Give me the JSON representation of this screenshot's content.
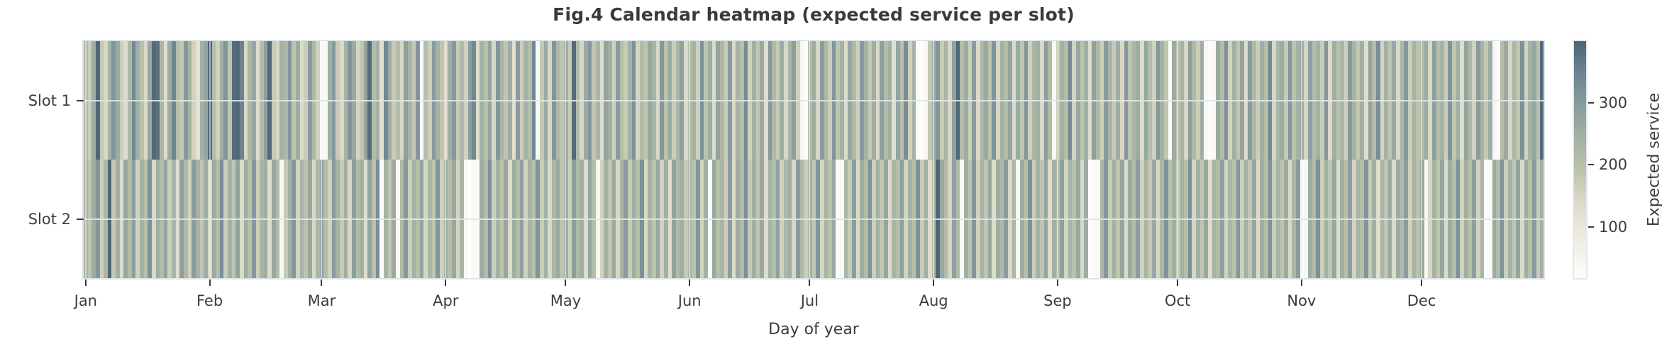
{
  "chart_data": {
    "type": "heatmap",
    "title": "Fig.4 Calendar heatmap (expected service per slot)",
    "xlabel": "Day of year",
    "colorbar_label": "Expected service",
    "colorbar_ticks": [
      100,
      200,
      300
    ],
    "vmin": 17,
    "vmax": 400,
    "days": 365,
    "x_tick_labels": [
      "Jan",
      "Feb",
      "Mar",
      "Apr",
      "May",
      "Jun",
      "Jul",
      "Aug",
      "Sep",
      "Oct",
      "Nov",
      "Dec"
    ],
    "month_start_days": [
      1,
      32,
      60,
      91,
      121,
      152,
      182,
      213,
      244,
      274,
      305,
      335
    ],
    "row_labels": [
      "Slot 1",
      "Slot 2"
    ],
    "grid": true,
    "colormap_anchors": [
      [
        17,
        "#fdfdfc"
      ],
      [
        100,
        "#eae6da"
      ],
      [
        150,
        "#d7d6c3"
      ],
      [
        200,
        "#b6bfa8"
      ],
      [
        250,
        "#a0afa3"
      ],
      [
        300,
        "#87999e"
      ],
      [
        350,
        "#6c8490"
      ],
      [
        400,
        "#4d6674"
      ]
    ],
    "series": [
      {
        "name": "Slot 1",
        "values": [
          212,
          168,
          254,
          396,
          181,
          146,
          233,
          310,
          258,
          170,
          128,
          221,
          338,
          249,
          196,
          141,
          266,
          391,
          382,
          226,
          129,
          257,
          345,
          205,
          178,
          299,
          238,
          157,
          117,
          244,
          272,
          398,
          205,
          161,
          247,
          310,
          186,
          389,
          394,
          352,
          146,
          228,
          268,
          132,
          209,
          287,
          391,
          175,
          150,
          243,
          222,
          306,
          188,
          256,
          136,
          171,
          295,
          218,
          162,
          28,
          35,
          248,
          301,
          172,
          142,
          235,
          309,
          263,
          151,
          184,
          276,
          389,
          208,
          244,
          119,
          339,
          256,
          172,
          205,
          148,
          287,
          232,
          178,
          310,
          24,
          204,
          164,
          296,
          239,
          187,
          137,
          252,
          304,
          175,
          215,
          160,
          288,
          338,
          126,
          243,
          198,
          272,
          146,
          308,
          227,
          184,
          252,
          121,
          297,
          168,
          236,
          206,
          341,
          33,
          179,
          260,
          145,
          310,
          222,
          188,
          254,
          172,
          391,
          214,
          146,
          262,
          308,
          183,
          228,
          131,
          276,
          249,
          160,
          298,
          205,
          174,
          240,
          320,
          152,
          211,
          186,
          266,
          230,
          144,
          305,
          194,
          258,
          170,
          224,
          284,
          138,
          208,
          242,
          162,
          316,
          190,
          252,
          136,
          278,
          221,
          173,
          296,
          146,
          235,
          201,
          330,
          158,
          246,
          182,
          264,
          128,
          302,
          217,
          176,
          255,
          146,
          231,
          288,
          164,
          38,
          22,
          207,
          256,
          148,
          293,
          226,
          170,
          310,
          188,
          242,
          133,
          269,
          215,
          163,
          301,
          236,
          179,
          252,
          141,
          286,
          208,
          247,
          122,
          274,
          196,
          328,
          161,
          239,
          29,
          17,
          44,
          182,
          256,
          308,
          174,
          231,
          146,
          282,
          398,
          205,
          252,
          168,
          296,
          138,
          224,
          262,
          190,
          315,
          152,
          243,
          208,
          277,
          136,
          260,
          186,
          306,
          164,
          229,
          251,
          143,
          290,
          213,
          35,
          178,
          244,
          206,
          332,
          156,
          268,
          192,
          248,
          130,
          285,
          219,
          163,
          297,
          234,
          175,
          252,
          146,
          302,
          188,
          226,
          256,
          137,
          271,
          203,
          161,
          308,
          242,
          184,
          26,
          258,
          197,
          233,
          146,
          288,
          221,
          170,
          252,
          38,
          21,
          30,
          262,
          205,
          316,
          158,
          243,
          186,
          274,
          132,
          296,
          218,
          168,
          250,
          204,
          338,
          146,
          228,
          260,
          176,
          304,
          192,
          241,
          263,
          150,
          285,
          210,
          240,
          172,
          308,
          136,
          252,
          196,
          226,
          162,
          298,
          234,
          180,
          246,
          128,
          274,
          206,
          330,
          154,
          242,
          188,
          266,
          146,
          222,
          302,
          170,
          238,
          194,
          216,
          256,
          146,
          284,
          202,
          238,
          168,
          312,
          184,
          250,
          132,
          272,
          220,
          160,
          296,
          236,
          178,
          254,
          40,
          25,
          206,
          264,
          148,
          230,
          186,
          320,
          158,
          242,
          270,
          196,
          388
        ]
      },
      {
        "name": "Slot 2",
        "values": [
          231,
          186,
          254,
          308,
          162,
          226,
          398,
          178,
          246,
          134,
          270,
          212,
          290,
          158,
          238,
          196,
          316,
          144,
          252,
          206,
          274,
          168,
          232,
          124,
          286,
          218,
          160,
          296,
          240,
          182,
          252,
          146,
          262,
          208,
          324,
          170,
          244,
          186,
          278,
          136,
          256,
          198,
          302,
          164,
          230,
          252,
          128,
          268,
          214,
          36,
          176,
          246,
          308,
          158,
          236,
          190,
          264,
          142,
          224,
          282,
          206,
          160,
          298,
          234,
          176,
          250,
          144,
          288,
          210,
          248,
          130,
          272,
          196,
          326,
          22,
          238,
          184,
          262,
          36,
          218,
          302,
          168,
          244,
          200,
          276,
          148,
          228,
          186,
          308,
          162,
          246,
          204,
          268,
          152,
          232,
          40,
          18,
          32,
          26,
          260,
          212,
          318,
          166,
          242,
          188,
          270,
          134,
          252,
          208,
          284,
          158,
          236,
          196,
          312,
          170,
          248,
          142,
          226,
          264,
          190,
          254,
          164,
          288,
          218,
          248,
          132,
          270,
          206,
          38,
          158,
          240,
          186,
          264,
          148,
          228,
          296,
          172,
          252,
          200,
          322,
          146,
          234,
          190,
          268,
          156,
          246,
          124,
          282,
          214,
          250,
          178,
          232,
          190,
          308,
          154,
          244,
          26,
          268,
          202,
          230,
          164,
          290,
          138,
          256,
          212,
          324,
          176,
          248,
          186,
          266,
          130,
          238,
          204,
          282,
          158,
          226,
          252,
          146,
          296,
          218,
          170,
          240,
          186,
          310,
          152,
          234,
          196,
          264,
          20,
          36,
          228,
          172,
          292,
          140,
          254,
          210,
          320,
          166,
          246,
          184,
          270,
          136,
          232,
          202,
          286,
          156,
          244,
          198,
          316,
          174,
          250,
          128,
          226,
          398,
          262,
          208,
          150,
          284,
          218,
          32,
          246,
          190,
          306,
          160,
          238,
          184,
          268,
          134,
          252,
          214,
          294,
          146,
          230,
          40,
          258,
          200,
          318,
          168,
          242,
          186,
          272,
          130,
          248,
          210,
          286,
          154,
          234,
          196,
          264,
          142,
          252,
          22,
          28,
          34,
          224,
          308,
          172,
          246,
          188,
          270,
          136,
          256,
          202,
          290,
          158,
          232,
          180,
          262,
          146,
          226,
          314,
          194,
          250,
          178,
          240,
          204,
          324,
          152,
          248,
          186,
          266,
          130,
          238,
          212,
          284,
          158,
          230,
          196,
          306,
          164,
          244,
          182,
          270,
          138,
          252,
          206,
          318,
          170,
          234,
          190,
          260,
          144,
          228,
          296,
          24,
          38,
          254,
          208,
          320,
          166,
          242,
          184,
          268,
          132,
          250,
          198,
          288,
          156,
          236,
          202,
          312,
          174,
          246,
          128,
          230,
          186,
          264,
          140,
          256,
          214,
          290,
          160,
          238,
          194,
          266,
          36,
          150,
          242,
          188,
          270,
          134,
          252,
          204,
          322,
          162,
          246,
          196,
          286,
          158,
          232,
          20,
          30,
          260,
          210,
          316,
          168,
          240,
          182,
          274,
          136,
          254,
          200,
          298,
          172,
          244
        ]
      }
    ]
  }
}
